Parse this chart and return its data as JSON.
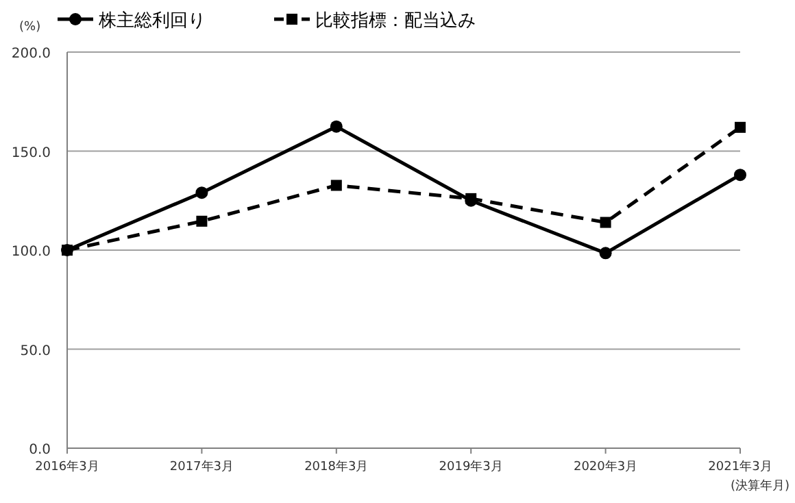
{
  "chart_data": {
    "type": "line",
    "ylabel": "(%)",
    "xlabel": "(決算年月)",
    "categories": [
      "2016年3月",
      "2017年3月",
      "2018年3月",
      "2019年3月",
      "2020年3月",
      "2021年3月"
    ],
    "series": [
      {
        "name": "株主総利回り",
        "color": "#000000",
        "values": [
          100,
          129,
          162.4,
          125,
          98.5,
          138
        ],
        "marker": "circle",
        "line_style": "solid"
      },
      {
        "name": "比較指標：配当込み",
        "color": "#000000",
        "values": [
          100,
          114.6,
          132.7,
          126,
          114,
          162
        ],
        "marker": "square",
        "line_style": "dashed"
      }
    ],
    "ylim": [
      0,
      200
    ],
    "yticks": [
      {
        "value": 0,
        "label": "0.0"
      },
      {
        "value": 50,
        "label": "50.0"
      },
      {
        "value": 100,
        "label": "100.0"
      },
      {
        "value": 150,
        "label": "150.0"
      },
      {
        "value": 200,
        "label": "200.0"
      }
    ],
    "grid": "y",
    "legend": "top left"
  }
}
